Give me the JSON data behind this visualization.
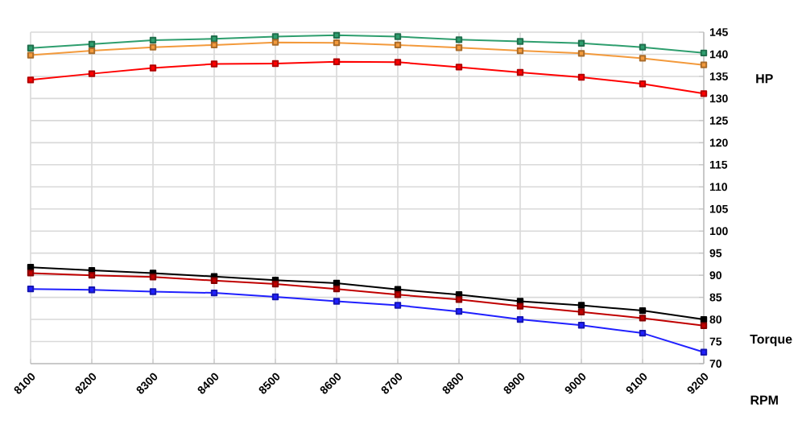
{
  "chart_data": {
    "type": "line",
    "xlabel": "RPM",
    "ylabel": "HP",
    "annotations": [
      "Torque"
    ],
    "categories": [
      "8100",
      "8200",
      "8300",
      "8400",
      "8500",
      "8600",
      "8700",
      "8800",
      "8900",
      "9000",
      "9100",
      "9200"
    ],
    "series": [
      {
        "color": "#2e9e6e",
        "values": [
          141.4,
          142.3,
          143.2,
          143.5,
          144.0,
          144.3,
          144.0,
          143.3,
          142.9,
          142.5,
          141.6,
          140.3
        ]
      },
      {
        "color": "#f39a3c",
        "values": [
          139.8,
          140.8,
          141.6,
          142.1,
          142.7,
          142.6,
          142.1,
          141.5,
          140.8,
          140.2,
          139.1,
          137.6
        ]
      },
      {
        "color": "#ff0000",
        "values": [
          134.2,
          135.6,
          136.9,
          137.8,
          137.9,
          138.3,
          138.2,
          137.1,
          135.9,
          134.8,
          133.3,
          131.1
        ]
      },
      {
        "color": "#000000",
        "values": [
          91.8,
          91.1,
          90.5,
          89.7,
          88.9,
          88.2,
          86.8,
          85.6,
          84.1,
          83.2,
          82.0,
          80.0
        ]
      },
      {
        "color": "#c00000",
        "values": [
          90.5,
          90.0,
          89.6,
          88.8,
          88.0,
          86.9,
          85.6,
          84.5,
          83.0,
          81.7,
          80.3,
          78.6
        ]
      },
      {
        "color": "#2020ff",
        "values": [
          86.9,
          86.7,
          86.3,
          86.0,
          85.1,
          84.1,
          83.2,
          81.8,
          80.0,
          78.7,
          76.9,
          72.6
        ]
      }
    ],
    "ylim": [
      70,
      145
    ],
    "yticks": [
      70,
      75,
      80,
      85,
      90,
      95,
      100,
      105,
      110,
      115,
      120,
      125,
      130,
      135,
      140,
      145
    ],
    "grid": true,
    "marker": "square",
    "line_style": "solid"
  }
}
